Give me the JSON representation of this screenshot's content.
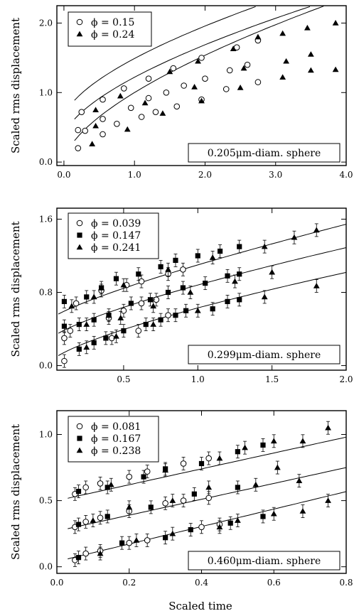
{
  "figure": {
    "xlabel": "Scaled time"
  },
  "chart_data": [
    {
      "type": "scatter",
      "ylabel": "Scaled rms displacement",
      "sphere_label": "0.205μm-diam. sphere",
      "xlim": [
        -0.1,
        4.0
      ],
      "ylim": [
        -0.05,
        2.25
      ],
      "xticks": [
        "0.0",
        "1.0",
        "2.0",
        "3.0",
        "4.0"
      ],
      "xtick_values": [
        0,
        1,
        2,
        3,
        4
      ],
      "yticks": [
        "0.0",
        "1.0",
        "2.0"
      ],
      "ytick_values": [
        0,
        1,
        2
      ],
      "legend": [
        {
          "marker": "circle",
          "label": "ϕ = 0.15"
        },
        {
          "marker": "triangle",
          "label": "ϕ = 0.24"
        }
      ],
      "fits": [
        {
          "a": 0.0,
          "b": 1.0,
          "p": 0.62,
          "x": [
            0.15,
            4.0
          ]
        },
        {
          "a": 0.35,
          "b": 0.87,
          "p": 0.62,
          "x": [
            0.15,
            4.0
          ]
        },
        {
          "a": 0.62,
          "b": 0.87,
          "p": 0.62,
          "x": [
            0.15,
            4.0
          ]
        }
      ],
      "series": [
        {
          "name": "ϕ = 0.15",
          "marker": "circle",
          "points": [
            [
              0.2,
              0.2
            ],
            [
              0.3,
              0.45
            ],
            [
              0.55,
              0.4
            ],
            [
              0.75,
              0.55
            ],
            [
              1.1,
              0.65
            ],
            [
              1.3,
              0.72
            ],
            [
              1.6,
              0.8
            ],
            [
              1.95,
              0.9
            ],
            [
              2.3,
              1.05
            ],
            [
              2.75,
              1.15
            ],
            [
              0.2,
              0.46
            ],
            [
              0.55,
              0.62
            ],
            [
              0.95,
              0.78
            ],
            [
              1.2,
              0.92
            ],
            [
              1.45,
              1.0
            ],
            [
              1.7,
              1.1
            ],
            [
              2.0,
              1.2
            ],
            [
              2.35,
              1.32
            ],
            [
              2.6,
              1.4
            ],
            [
              0.25,
              0.72
            ],
            [
              0.55,
              0.9
            ],
            [
              0.85,
              1.06
            ],
            [
              1.2,
              1.2
            ],
            [
              1.55,
              1.35
            ],
            [
              1.95,
              1.5
            ],
            [
              2.45,
              1.65
            ],
            [
              2.75,
              1.75
            ]
          ]
        },
        {
          "name": "ϕ = 0.24",
          "marker": "triangle",
          "points": [
            [
              0.4,
              0.26
            ],
            [
              0.9,
              0.47
            ],
            [
              1.4,
              0.7
            ],
            [
              1.95,
              0.88
            ],
            [
              2.5,
              1.07
            ],
            [
              3.1,
              1.22
            ],
            [
              3.5,
              1.32
            ],
            [
              3.85,
              1.33
            ],
            [
              0.45,
              0.52
            ],
            [
              1.15,
              0.85
            ],
            [
              1.85,
              1.08
            ],
            [
              2.55,
              1.35
            ],
            [
              3.15,
              1.45
            ],
            [
              3.5,
              1.55
            ],
            [
              0.45,
              0.75
            ],
            [
              0.8,
              0.95
            ],
            [
              1.5,
              1.3
            ],
            [
              1.9,
              1.45
            ],
            [
              2.4,
              1.63
            ],
            [
              2.75,
              1.8
            ],
            [
              3.1,
              1.85
            ],
            [
              3.45,
              1.93
            ],
            [
              3.85,
              2.0
            ]
          ]
        }
      ]
    },
    {
      "type": "scatter",
      "ylabel": "Scaled rms displacement",
      "sphere_label": "0.299μm-diam. sphere",
      "xlim": [
        0.05,
        2.0
      ],
      "ylim": [
        -0.05,
        1.72
      ],
      "xticks": [
        "0.5",
        "1.0",
        "1.5",
        "2.0"
      ],
      "xtick_values": [
        0.5,
        1.0,
        1.5,
        2.0
      ],
      "yticks": [
        "0.0",
        "0.8",
        "1.6"
      ],
      "ytick_values": [
        0,
        0.8,
        1.6
      ],
      "legend": [
        {
          "marker": "circle",
          "label": "ϕ = 0.039"
        },
        {
          "marker": "square",
          "label": "ϕ = 0.147"
        },
        {
          "marker": "triangle",
          "label": "ϕ = 0.241"
        }
      ],
      "fits": [
        {
          "a": 0.03,
          "b": 0.6,
          "p": 0.72,
          "x": [
            0.06,
            2.0
          ]
        },
        {
          "a": 0.28,
          "b": 0.6,
          "p": 0.75,
          "x": [
            0.06,
            2.0
          ]
        },
        {
          "a": 0.5,
          "b": 0.6,
          "p": 0.8,
          "x": [
            0.06,
            2.0
          ]
        }
      ],
      "series": [
        {
          "name": "ϕ = 0.039",
          "marker": "circle",
          "points": [
            [
              0.1,
              0.05
            ],
            [
              0.42,
              0.3
            ],
            [
              0.6,
              0.38
            ],
            [
              0.8,
              0.55
            ],
            [
              0.1,
              0.3
            ],
            [
              0.14,
              0.38
            ],
            [
              0.4,
              0.52
            ],
            [
              0.5,
              0.6
            ],
            [
              0.62,
              0.68
            ],
            [
              0.72,
              0.72
            ],
            [
              0.18,
              0.68
            ],
            [
              0.35,
              0.82
            ],
            [
              0.52,
              0.88
            ],
            [
              0.62,
              0.92
            ],
            [
              0.8,
              1.0
            ],
            [
              0.9,
              1.05
            ]
          ]
        },
        {
          "name": "ϕ = 0.147",
          "marker": "square",
          "points": [
            [
              0.2,
              0.18
            ],
            [
              0.3,
              0.25
            ],
            [
              0.38,
              0.3
            ],
            [
              0.5,
              0.38
            ],
            [
              0.65,
              0.45
            ],
            [
              0.75,
              0.5
            ],
            [
              0.85,
              0.55
            ],
            [
              0.92,
              0.6
            ],
            [
              1.1,
              0.62
            ],
            [
              1.2,
              0.7
            ],
            [
              1.28,
              0.72
            ],
            [
              0.1,
              0.43
            ],
            [
              0.2,
              0.45
            ],
            [
              0.3,
              0.5
            ],
            [
              0.4,
              0.55
            ],
            [
              0.55,
              0.68
            ],
            [
              0.68,
              0.72
            ],
            [
              0.8,
              0.8
            ],
            [
              0.9,
              0.85
            ],
            [
              1.05,
              0.9
            ],
            [
              1.2,
              0.98
            ],
            [
              1.28,
              1.0
            ],
            [
              0.1,
              0.7
            ],
            [
              0.25,
              0.75
            ],
            [
              0.35,
              0.85
            ],
            [
              0.45,
              0.95
            ],
            [
              0.6,
              1.0
            ],
            [
              0.75,
              1.08
            ],
            [
              0.85,
              1.15
            ],
            [
              1.0,
              1.2
            ],
            [
              1.15,
              1.25
            ],
            [
              1.28,
              1.3
            ]
          ]
        },
        {
          "name": "ϕ = 0.241",
          "marker": "triangle",
          "points": [
            [
              0.25,
              0.2
            ],
            [
              0.45,
              0.32
            ],
            [
              0.7,
              0.45
            ],
            [
              1.0,
              0.6
            ],
            [
              1.45,
              0.75
            ],
            [
              1.8,
              0.87
            ],
            [
              0.25,
              0.45
            ],
            [
              0.48,
              0.52
            ],
            [
              0.7,
              0.65
            ],
            [
              0.95,
              0.8
            ],
            [
              1.25,
              0.92
            ],
            [
              1.5,
              1.02
            ],
            [
              0.15,
              0.65
            ],
            [
              0.3,
              0.75
            ],
            [
              0.5,
              0.88
            ],
            [
              0.8,
              1.05
            ],
            [
              1.1,
              1.18
            ],
            [
              1.45,
              1.3
            ],
            [
              1.65,
              1.4
            ],
            [
              1.8,
              1.48
            ]
          ]
        }
      ]
    },
    {
      "type": "scatter",
      "ylabel": "Scaled rms displacement",
      "sphere_label": "0.460μm-diam. sphere",
      "xlim": [
        0.0,
        0.8
      ],
      "ylim": [
        -0.05,
        1.18
      ],
      "xticks": [
        "0.0",
        "0.2",
        "0.4",
        "0.6",
        "0.8"
      ],
      "xtick_values": [
        0,
        0.2,
        0.4,
        0.6,
        0.8
      ],
      "yticks": [
        "0.0",
        "0.5",
        "1.0"
      ],
      "ytick_values": [
        0,
        0.5,
        1.0
      ],
      "legend": [
        {
          "marker": "circle",
          "label": "ϕ = 0.081"
        },
        {
          "marker": "square",
          "label": "ϕ = 0.167"
        },
        {
          "marker": "triangle",
          "label": "ϕ = 0.238"
        }
      ],
      "fits": [
        {
          "a": 0.04,
          "b": 0.66,
          "p": 1.0,
          "x": [
            0.03,
            0.8
          ]
        },
        {
          "a": 0.27,
          "b": 0.6,
          "p": 1.0,
          "x": [
            0.03,
            0.8
          ]
        },
        {
          "a": 0.5,
          "b": 0.6,
          "p": 1.0,
          "x": [
            0.03,
            0.8
          ]
        }
      ],
      "series": [
        {
          "name": "ϕ = 0.081",
          "marker": "circle",
          "points": [
            [
              0.05,
              0.05
            ],
            [
              0.08,
              0.1
            ],
            [
              0.12,
              0.12
            ],
            [
              0.2,
              0.18
            ],
            [
              0.25,
              0.2
            ],
            [
              0.4,
              0.3
            ],
            [
              0.45,
              0.32
            ],
            [
              0.05,
              0.3
            ],
            [
              0.08,
              0.34
            ],
            [
              0.12,
              0.37
            ],
            [
              0.2,
              0.42
            ],
            [
              0.3,
              0.48
            ],
            [
              0.35,
              0.5
            ],
            [
              0.42,
              0.52
            ],
            [
              0.05,
              0.55
            ],
            [
              0.08,
              0.6
            ],
            [
              0.12,
              0.63
            ],
            [
              0.2,
              0.68
            ],
            [
              0.25,
              0.72
            ],
            [
              0.35,
              0.78
            ],
            [
              0.42,
              0.82
            ]
          ]
        },
        {
          "name": "ϕ = 0.167",
          "marker": "square",
          "points": [
            [
              0.06,
              0.07
            ],
            [
              0.18,
              0.18
            ],
            [
              0.3,
              0.22
            ],
            [
              0.37,
              0.28
            ],
            [
              0.48,
              0.33
            ],
            [
              0.57,
              0.38
            ],
            [
              0.06,
              0.32
            ],
            [
              0.14,
              0.38
            ],
            [
              0.26,
              0.45
            ],
            [
              0.38,
              0.55
            ],
            [
              0.5,
              0.6
            ],
            [
              0.06,
              0.57
            ],
            [
              0.14,
              0.6
            ],
            [
              0.24,
              0.68
            ],
            [
              0.3,
              0.74
            ],
            [
              0.4,
              0.78
            ],
            [
              0.5,
              0.87
            ],
            [
              0.57,
              0.92
            ]
          ]
        },
        {
          "name": "ϕ = 0.238",
          "marker": "triangle",
          "points": [
            [
              0.12,
              0.1
            ],
            [
              0.22,
              0.2
            ],
            [
              0.32,
              0.25
            ],
            [
              0.45,
              0.3
            ],
            [
              0.5,
              0.35
            ],
            [
              0.6,
              0.4
            ],
            [
              0.68,
              0.42
            ],
            [
              0.75,
              0.5
            ],
            [
              0.1,
              0.35
            ],
            [
              0.2,
              0.45
            ],
            [
              0.32,
              0.5
            ],
            [
              0.42,
              0.6
            ],
            [
              0.55,
              0.62
            ],
            [
              0.61,
              0.75
            ],
            [
              0.67,
              0.65
            ],
            [
              0.15,
              0.62
            ],
            [
              0.3,
              0.73
            ],
            [
              0.45,
              0.82
            ],
            [
              0.52,
              0.9
            ],
            [
              0.6,
              0.95
            ],
            [
              0.68,
              0.95
            ],
            [
              0.75,
              1.05
            ]
          ]
        }
      ]
    }
  ]
}
